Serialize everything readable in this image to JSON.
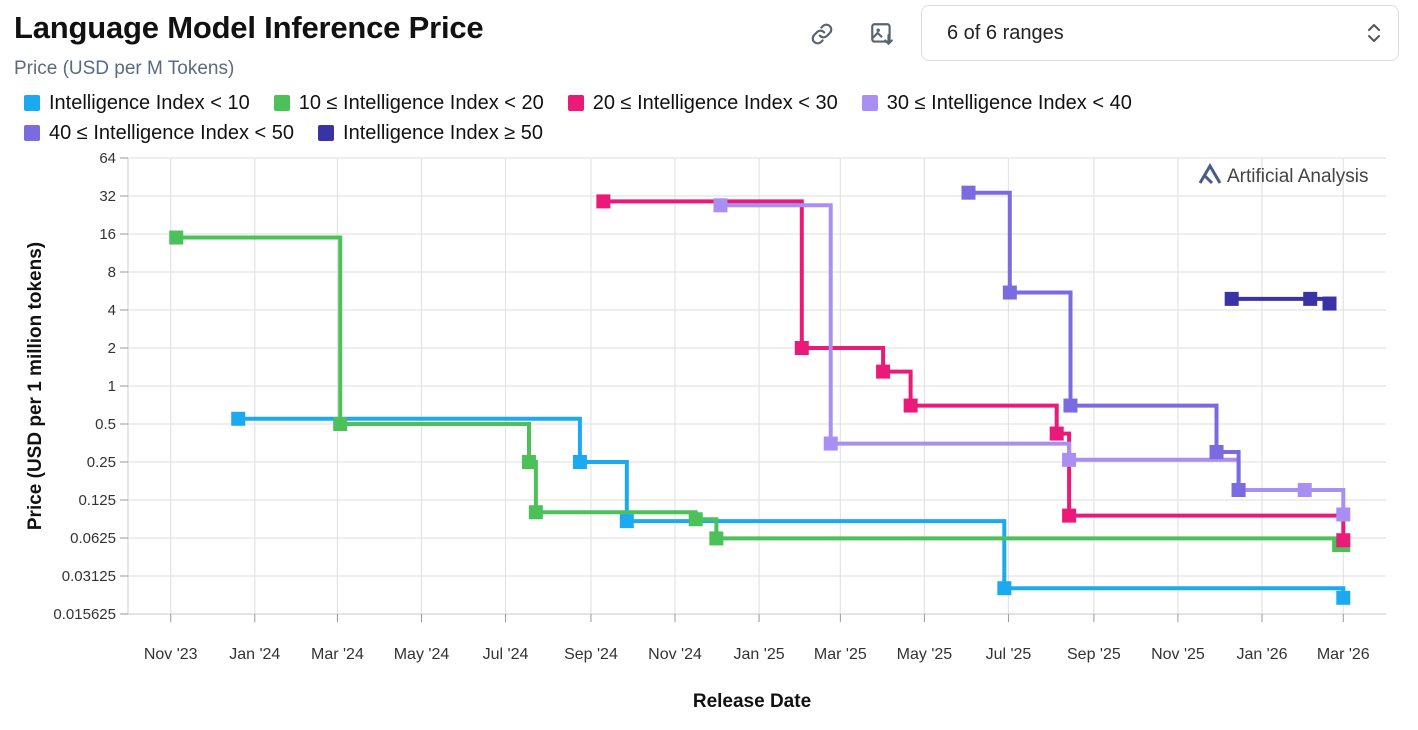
{
  "header": {
    "title": "Language Model Inference Price",
    "subtitle": "Price (USD per M Tokens)",
    "range_select_value": "6 of 6 ranges",
    "icons": [
      "link-icon",
      "image-download-icon",
      "chevron-updown-icon"
    ]
  },
  "watermark": "Artificial Analysis",
  "chart_data": {
    "type": "line",
    "step": true,
    "yscale": "log2",
    "ylabel": "Price (USD per 1 million tokens)",
    "xlabel": "Release Date",
    "ylim": [
      0.015625,
      64
    ],
    "xlim": [
      "2023-10-01",
      "2026-04-01"
    ],
    "y_ticks": [
      64,
      32,
      16,
      8,
      4,
      2,
      1,
      0.5,
      0.25,
      0.125,
      0.0625,
      0.03125,
      0.015625
    ],
    "y_tick_labels": [
      "64",
      "32",
      "16",
      "8",
      "4",
      "2",
      "1",
      "0.5",
      "0.25",
      "0.125",
      "0.0625",
      "0.03125",
      "0.015625"
    ],
    "x_ticks": [
      "2023-11-01",
      "2024-01-01",
      "2024-03-01",
      "2024-05-01",
      "2024-07-01",
      "2024-09-01",
      "2024-11-01",
      "2025-01-01",
      "2025-03-01",
      "2025-05-01",
      "2025-07-01",
      "2025-09-01",
      "2025-11-01",
      "2026-01-01",
      "2026-03-01"
    ],
    "x_tick_labels": [
      "Nov '23",
      "Jan '24",
      "Mar '24",
      "May '24",
      "Jul '24",
      "Sep '24",
      "Nov '24",
      "Jan '25",
      "Mar '25",
      "May '25",
      "Jul '25",
      "Sep '25",
      "Nov '25",
      "Jan '26",
      "Mar '26"
    ],
    "grid": true,
    "legend_position": "top-left",
    "series": [
      {
        "name": "Intelligence Index < 10",
        "color": "#1ba9f2",
        "points": [
          {
            "date": "2023-12-20",
            "value": 0.55
          },
          {
            "date": "2024-08-24",
            "value": 0.25
          },
          {
            "date": "2024-09-27",
            "value": 0.085
          },
          {
            "date": "2025-06-28",
            "value": 0.025
          },
          {
            "date": "2026-03-01",
            "value": 0.021
          }
        ]
      },
      {
        "name": "10 ≤ Intelligence Index < 20",
        "color": "#4cc15a",
        "points": [
          {
            "date": "2023-11-05",
            "value": 15
          },
          {
            "date": "2024-03-03",
            "value": 0.5
          },
          {
            "date": "2024-07-18",
            "value": 0.25
          },
          {
            "date": "2024-07-23",
            "value": 0.1
          },
          {
            "date": "2024-11-16",
            "value": 0.088
          },
          {
            "date": "2024-12-01",
            "value": 0.062
          },
          {
            "date": "2026-02-26",
            "value": 0.055
          },
          {
            "date": "2026-03-01",
            "value": 0.055
          }
        ]
      },
      {
        "name": "20 ≤ Intelligence Index < 30",
        "color": "#ea1a78",
        "points": [
          {
            "date": "2024-09-10",
            "value": 29
          },
          {
            "date": "2025-02-01",
            "value": 2
          },
          {
            "date": "2025-04-01",
            "value": 1.3
          },
          {
            "date": "2025-04-21",
            "value": 0.7
          },
          {
            "date": "2025-08-05",
            "value": 0.42
          },
          {
            "date": "2025-08-14",
            "value": 0.094
          },
          {
            "date": "2026-03-01",
            "value": 0.06
          }
        ]
      },
      {
        "name": "30 ≤ Intelligence Index < 40",
        "color": "#a98ef3",
        "points": [
          {
            "date": "2024-12-04",
            "value": 27
          },
          {
            "date": "2025-02-22",
            "value": 0.35
          },
          {
            "date": "2025-08-14",
            "value": 0.26
          },
          {
            "date": "2025-12-15",
            "value": 0.15
          },
          {
            "date": "2026-02-01",
            "value": 0.15
          },
          {
            "date": "2026-03-01",
            "value": 0.096
          }
        ]
      },
      {
        "name": "40 ≤ Intelligence Index < 50",
        "color": "#7b6be0",
        "points": [
          {
            "date": "2025-06-02",
            "value": 34
          },
          {
            "date": "2025-07-02",
            "value": 5.5
          },
          {
            "date": "2025-08-15",
            "value": 0.7
          },
          {
            "date": "2025-11-29",
            "value": 0.3
          },
          {
            "date": "2025-12-15",
            "value": 0.15
          }
        ]
      },
      {
        "name": "Intelligence Index ≥ 50",
        "color": "#3a33a6",
        "points": [
          {
            "date": "2025-12-10",
            "value": 4.9
          },
          {
            "date": "2026-02-05",
            "value": 4.9
          },
          {
            "date": "2026-02-19",
            "value": 4.5
          }
        ]
      }
    ]
  }
}
